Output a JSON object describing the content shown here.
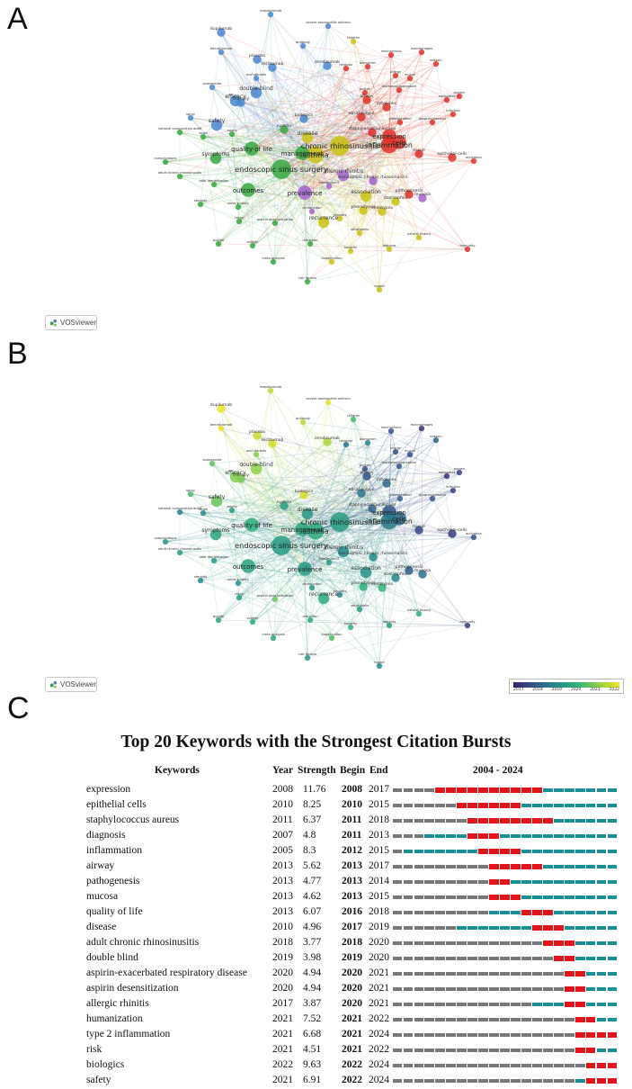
{
  "panels": {
    "a_label": "A",
    "b_label": "B",
    "c_label": "C",
    "vos_label": "VOSviewer"
  },
  "colorbar": {
    "ticks": [
      "2017",
      "2018",
      "2019",
      "2020",
      "2021",
      "2022"
    ],
    "colors": [
      "#3b1f6e",
      "#34568b",
      "#258a8c",
      "#2fb27a",
      "#8fcf4a",
      "#f2e51f"
    ]
  },
  "network_nodes": [
    {
      "label": "mepolizumab",
      "cluster": "blue",
      "size": 1,
      "year": 2021.5
    },
    {
      "label": "severe eosinophilic asthma",
      "cluster": "blue",
      "size": 1,
      "year": 2021.8
    },
    {
      "label": "children",
      "cluster": "yellow",
      "size": 1,
      "year": 2020.2
    },
    {
      "label": "dupilumab",
      "cluster": "blue",
      "size": 2,
      "year": 2021.9
    },
    {
      "label": "antibody",
      "cluster": "blue",
      "size": 1,
      "year": 2021.4
    },
    {
      "label": "benralizumab",
      "cluster": "blue",
      "size": 1,
      "year": 2021.9
    },
    {
      "label": "placebo",
      "cluster": "blue",
      "size": 2,
      "year": 2021.6
    },
    {
      "label": "reslizumab",
      "cluster": "blue",
      "size": 2,
      "year": 2021.7
    },
    {
      "label": "omalizumab",
      "cluster": "blue",
      "size": 2,
      "year": 2021.3
    },
    {
      "label": "oral steroids",
      "cluster": "blue",
      "size": 1,
      "year": 2020.9
    },
    {
      "label": "biologics",
      "cluster": "blue",
      "size": 2,
      "year": 2021.7
    },
    {
      "label": "double-blind",
      "cluster": "blue",
      "size": 3,
      "year": 2021.0
    },
    {
      "label": "therapy",
      "cluster": "blue",
      "size": 2,
      "year": 2020.7
    },
    {
      "label": "efficacy",
      "cluster": "blue",
      "size": 3,
      "year": 2020.9
    },
    {
      "label": "safety",
      "cluster": "blue",
      "size": 3,
      "year": 2020.6
    },
    {
      "label": "budesonide",
      "cluster": "blue",
      "size": 1,
      "year": 2020.5
    },
    {
      "label": "spray",
      "cluster": "blue",
      "size": 1,
      "year": 2020.3
    },
    {
      "label": "receptor",
      "cluster": "red",
      "size": 1,
      "year": 2018.6
    },
    {
      "label": "biomarker",
      "cluster": "red",
      "size": 1,
      "year": 2018.9
    },
    {
      "label": "polyps",
      "cluster": "red",
      "size": 1,
      "year": 2017.8
    },
    {
      "label": "airway",
      "cluster": "red",
      "size": 2,
      "year": 2018.0
    },
    {
      "label": "cytokines",
      "cluster": "red",
      "size": 2,
      "year": 2018.3
    },
    {
      "label": "expression",
      "cluster": "red",
      "size": 4,
      "year": 2018.0
    },
    {
      "label": "cells",
      "cluster": "red",
      "size": 4,
      "year": 2018.4
    },
    {
      "label": "inflammation",
      "cluster": "red",
      "size": 5,
      "year": 2018.7
    },
    {
      "label": "tissue",
      "cluster": "red",
      "size": 2,
      "year": 2017.7
    },
    {
      "label": "epithelial-cells",
      "cluster": "red",
      "size": 2,
      "year": 2017.6
    },
    {
      "label": "activation",
      "cluster": "red",
      "size": 1,
      "year": 2017.9
    },
    {
      "label": "immunity",
      "cluster": "red",
      "size": 1,
      "year": 2017.5
    },
    {
      "label": "staphylococcus aureus",
      "cluster": "red",
      "size": 2,
      "year": 2018.2
    },
    {
      "label": "pathogenesis",
      "cluster": "red",
      "size": 2,
      "year": 2018.1
    },
    {
      "label": "chronic rhinosinusitis",
      "cluster": "yellow",
      "size": 6,
      "year": 2019.5
    },
    {
      "label": "asthma",
      "cluster": "yellow",
      "size": 5,
      "year": 2019.8
    },
    {
      "label": "management",
      "cluster": "green",
      "size": 4,
      "year": 2019.7
    },
    {
      "label": "disease",
      "cluster": "yellow",
      "size": 3,
      "year": 2019.3
    },
    {
      "label": "quality of life",
      "cluster": "green",
      "size": 4,
      "year": 2019.9
    },
    {
      "label": "symptoms",
      "cluster": "green",
      "size": 3,
      "year": 2019.6
    },
    {
      "label": "endoscopic sinus surgery",
      "cluster": "green",
      "size": 6,
      "year": 2019.4
    },
    {
      "label": "outcomes",
      "cluster": "green",
      "size": 4,
      "year": 2019.6
    },
    {
      "label": "prevalence",
      "cluster": "purple",
      "size": 4,
      "year": 2019.4
    },
    {
      "label": "allergic rhinitis",
      "cluster": "purple",
      "size": 3,
      "year": 2019.0
    },
    {
      "label": "association",
      "cluster": "yellow",
      "size": 3,
      "year": 2019.2
    },
    {
      "label": "eosinophils",
      "cluster": "yellow",
      "size": 2,
      "year": 2019.0
    },
    {
      "label": "recurrence",
      "cluster": "yellow",
      "size": 3,
      "year": 2019.8
    },
    {
      "label": "phenotypes",
      "cluster": "yellow",
      "size": 2,
      "year": 2019.9
    },
    {
      "label": "endotypes",
      "cluster": "yellow",
      "size": 2,
      "year": 2020.1
    },
    {
      "label": "neutrophils",
      "cluster": "yellow",
      "size": 1,
      "year": 2019.3
    },
    {
      "label": "features",
      "cluster": "yellow",
      "size": 1,
      "year": 2019.6
    },
    {
      "label": "severity",
      "cluster": "yellow",
      "size": 1,
      "year": 2020.0
    },
    {
      "label": "classification",
      "cluster": "yellow",
      "size": 1,
      "year": 2020.4
    },
    {
      "label": "natural history",
      "cluster": "yellow",
      "size": 1,
      "year": 2020.0
    },
    {
      "label": "risk factors",
      "cluster": "green",
      "size": 1,
      "year": 2019.3
    },
    {
      "label": "model",
      "cluster": "yellow",
      "size": 1,
      "year": 2019.1
    },
    {
      "label": "sinus surgery",
      "cluster": "green",
      "size": 1,
      "year": 2019.2
    },
    {
      "label": "steroids",
      "cluster": "green",
      "size": 1,
      "year": 2019.0
    },
    {
      "label": "rates",
      "cluster": "green",
      "size": 1,
      "year": 2019.5
    },
    {
      "label": "aspirin desensitization",
      "cluster": "green",
      "size": 1,
      "year": 2020.6
    },
    {
      "label": "dysfunction",
      "cluster": "purple",
      "size": 1,
      "year": 2019.3
    },
    {
      "label": "validity",
      "cluster": "green",
      "size": 1,
      "year": 2019.8
    },
    {
      "label": "quality",
      "cluster": "green",
      "size": 1,
      "year": 2019.6
    },
    {
      "label": "reduction",
      "cluster": "green",
      "size": 1,
      "year": 2019.9
    },
    {
      "label": "meta-analysis",
      "cluster": "green",
      "size": 1,
      "year": 2019.7
    },
    {
      "label": "complications",
      "cluster": "green",
      "size": 1,
      "year": 2019.2
    },
    {
      "label": "adult chronic rhinosinusitis",
      "cluster": "green",
      "size": 1,
      "year": 2019.5
    },
    {
      "label": "odor identification",
      "cluster": "green",
      "size": 1,
      "year": 2019.3
    },
    {
      "label": "national comparative audit",
      "cluster": "green",
      "size": 1,
      "year": 2018.8
    },
    {
      "label": "smell",
      "cluster": "green",
      "size": 1,
      "year": 2019.0
    },
    {
      "label": "adults",
      "cluster": "green",
      "size": 1,
      "year": 2019.4
    },
    {
      "label": "system",
      "cluster": "green",
      "size": 2,
      "year": 2019.5
    },
    {
      "label": "mucosa",
      "cluster": "purple",
      "size": 2,
      "year": 2018.5
    },
    {
      "label": "eosinophilic chronic rhinosinusitis",
      "cluster": "purple",
      "size": 2,
      "year": 2019.1
    },
    {
      "label": "interleukin-5",
      "cluster": "purple",
      "size": 1,
      "year": 2019.4
    },
    {
      "label": "sinusitis",
      "cluster": "yellow",
      "size": 1,
      "year": 2019.0
    },
    {
      "label": "differentiation",
      "cluster": "red",
      "size": 1,
      "year": 2018.2
    },
    {
      "label": "nasal polyps",
      "cluster": "red",
      "size": 2,
      "year": 2018.6
    },
    {
      "label": "gene-expression",
      "cluster": "red",
      "size": 1,
      "year": 2017.9
    },
    {
      "label": "increased expression",
      "cluster": "red",
      "size": 1,
      "year": 2018.0
    },
    {
      "label": "infection",
      "cluster": "red",
      "size": 1,
      "year": 2017.6
    },
    {
      "label": "macrophages",
      "cluster": "red",
      "size": 1,
      "year": 2017.4
    },
    {
      "label": "mucus",
      "cluster": "red",
      "size": 1,
      "year": 2017.8
    },
    {
      "label": "mechanisms",
      "cluster": "red",
      "size": 1,
      "year": 2018.0
    },
    {
      "label": "antibodies",
      "cluster": "red",
      "size": 1,
      "year": 2017.3
    },
    {
      "label": "protein",
      "cluster": "red",
      "size": 1,
      "year": 2017.7
    },
    {
      "label": "allergy",
      "cluster": "red",
      "size": 1,
      "year": 2017.9
    },
    {
      "label": "eotaxin",
      "cluster": "red",
      "size": 1,
      "year": 2018.3
    }
  ],
  "chart_data": {
    "type": "table",
    "title": "Top 20 Keywords with the Strongest Citation Bursts",
    "columns": [
      "Keywords",
      "Year",
      "Strength",
      "Begin",
      "End",
      "2004 - 2024"
    ],
    "timeline": [
      2004,
      2024
    ],
    "colors": {
      "burst": "#e0151b",
      "active": "#1a8f93",
      "inactive": "#777777"
    },
    "rows": [
      {
        "keyword": "expression",
        "year": "2008",
        "strength": "11.76",
        "begin": "2008",
        "end": "2017"
      },
      {
        "keyword": "epithelial cells",
        "year": "2010",
        "strength": "8.25",
        "begin": "2010",
        "end": "2015"
      },
      {
        "keyword": "staphylococcus aureus",
        "year": "2011",
        "strength": "6.37",
        "begin": "2011",
        "end": "2018"
      },
      {
        "keyword": "diagnosis",
        "year": "2007",
        "strength": "4.8",
        "begin": "2011",
        "end": "2013"
      },
      {
        "keyword": "inflammation",
        "year": "2005",
        "strength": "8.3",
        "begin": "2012",
        "end": "2015"
      },
      {
        "keyword": "airway",
        "year": "2013",
        "strength": "5.62",
        "begin": "2013",
        "end": "2017"
      },
      {
        "keyword": "pathogenesis",
        "year": "2013",
        "strength": "4.77",
        "begin": "2013",
        "end": "2014"
      },
      {
        "keyword": "mucosa",
        "year": "2013",
        "strength": "4.62",
        "begin": "2013",
        "end": "2015"
      },
      {
        "keyword": "quality of life",
        "year": "2013",
        "strength": "6.07",
        "begin": "2016",
        "end": "2018"
      },
      {
        "keyword": "disease",
        "year": "2010",
        "strength": "4.96",
        "begin": "2017",
        "end": "2019"
      },
      {
        "keyword": "adult chronic rhinosinusitis",
        "year": "2018",
        "strength": "3.77",
        "begin": "2018",
        "end": "2020"
      },
      {
        "keyword": "double blind",
        "year": "2019",
        "strength": "3.98",
        "begin": "2019",
        "end": "2020"
      },
      {
        "keyword": "aspirin-exacerbated respiratory disease",
        "year": "2020",
        "strength": "4.94",
        "begin": "2020",
        "end": "2021"
      },
      {
        "keyword": "aspirin desensitization",
        "year": "2020",
        "strength": "4.94",
        "begin": "2020",
        "end": "2021"
      },
      {
        "keyword": "allergic rhinitis",
        "year": "2017",
        "strength": "3.87",
        "begin": "2020",
        "end": "2021"
      },
      {
        "keyword": "humanization",
        "year": "2021",
        "strength": "7.52",
        "begin": "2021",
        "end": "2022"
      },
      {
        "keyword": "type 2 inflammation",
        "year": "2021",
        "strength": "6.68",
        "begin": "2021",
        "end": "2024"
      },
      {
        "keyword": "risk",
        "year": "2021",
        "strength": "4.51",
        "begin": "2021",
        "end": "2022"
      },
      {
        "keyword": "biologics",
        "year": "2022",
        "strength": "9.63",
        "begin": "2022",
        "end": "2024"
      },
      {
        "keyword": "safety",
        "year": "2021",
        "strength": "6.91",
        "begin": "2022",
        "end": "2024"
      }
    ]
  }
}
